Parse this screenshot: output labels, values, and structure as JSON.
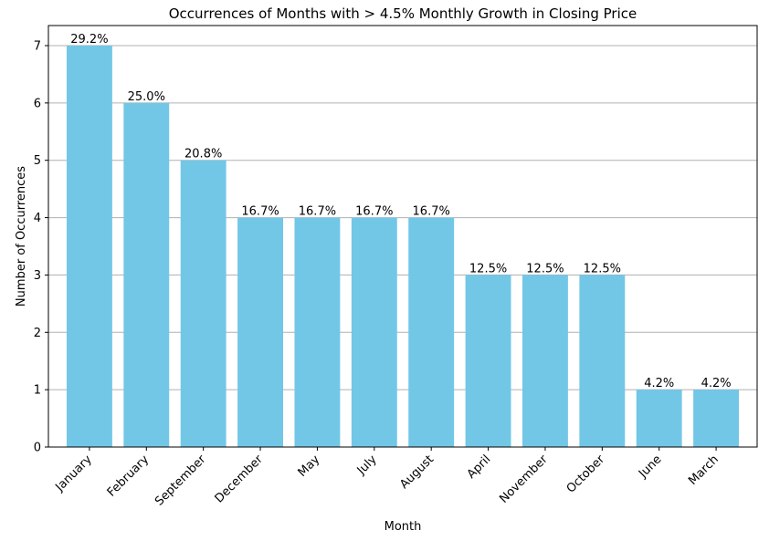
{
  "chart_data": {
    "type": "bar",
    "title": "Occurrences of Months with > 4.5% Monthly Growth in Closing Price",
    "xlabel": "Month",
    "ylabel": "Number of Occurrences",
    "categories": [
      "January",
      "February",
      "September",
      "December",
      "May",
      "July",
      "August",
      "April",
      "November",
      "October",
      "June",
      "March"
    ],
    "values": [
      7,
      6,
      5,
      4,
      4,
      4,
      4,
      3,
      3,
      3,
      1,
      1
    ],
    "data_labels": [
      "29.2%",
      "25.0%",
      "20.8%",
      "16.7%",
      "16.7%",
      "16.7%",
      "16.7%",
      "12.5%",
      "12.5%",
      "12.5%",
      "4.2%",
      "4.2%"
    ],
    "yticks": [
      0,
      1,
      2,
      3,
      4,
      5,
      6,
      7
    ],
    "ylim": [
      0,
      7.35
    ],
    "grid": "y",
    "bar_color": "#72c7e6",
    "grid_color": "#b0b0b0",
    "tick_rotation": 45
  }
}
